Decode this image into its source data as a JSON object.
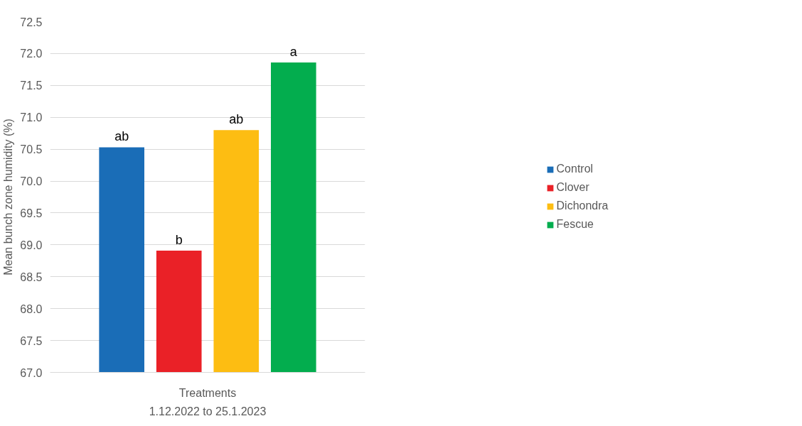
{
  "chart_data": {
    "type": "bar",
    "ylabel": "Mean bunch zone humidity (%)",
    "xlabel": "1.12.2022 to 25.1.2023",
    "categories": [
      "Treatments"
    ],
    "series": [
      {
        "name": "Control",
        "color": "#1a6db7",
        "values": [
          70.53
        ],
        "value_labels": [
          "ab"
        ]
      },
      {
        "name": "Clover",
        "color": "#ea2127",
        "values": [
          68.91
        ],
        "value_labels": [
          "b"
        ]
      },
      {
        "name": "Dichondra",
        "color": "#fdbd12",
        "values": [
          70.8
        ],
        "value_labels": [
          "ab"
        ]
      },
      {
        "name": "Fescue",
        "color": "#03ad4e",
        "values": [
          71.86
        ],
        "value_labels": [
          "a"
        ]
      }
    ],
    "ylim": [
      67.0,
      72.5
    ],
    "yticks": [
      {
        "value": 67,
        "label": "67.0"
      },
      67.5,
      {
        "value": 68,
        "label": "68.0"
      },
      68.5,
      {
        "value": 69,
        "label": "69.0"
      },
      69.5,
      {
        "value": 70,
        "label": "70.0"
      },
      70.5,
      {
        "value": 71,
        "label": "71.0"
      },
      71.5,
      {
        "value": 72,
        "label": "72.0"
      },
      72.5
    ],
    "grid": "y",
    "legend": "right"
  }
}
